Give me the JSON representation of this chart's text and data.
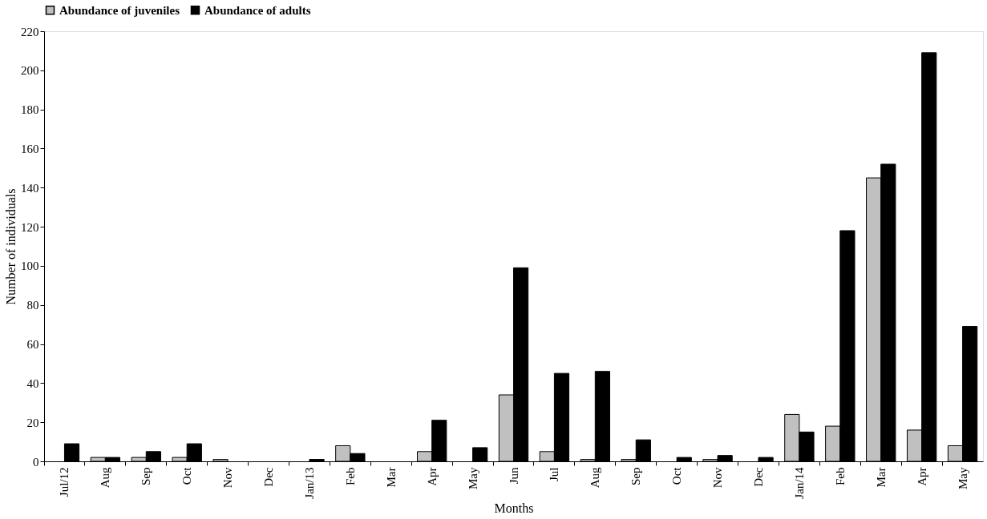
{
  "chart_data": {
    "type": "bar",
    "xlabel": "Months",
    "ylabel": "Number of individuals",
    "categories": [
      "Jul/12",
      "Aug",
      "Sep",
      "Oct",
      "Nov",
      "Dec",
      "Jan/13",
      "Feb",
      "Mar",
      "Apr",
      "May",
      "Jun",
      "Jul",
      "Aug",
      "Sep",
      "Oct",
      "Nov",
      "Dec",
      "Jan/14",
      "Feb",
      "Mar",
      "Apr",
      "May"
    ],
    "series": [
      {
        "name": "Abundance of juveniles",
        "color": "#c0c0c0",
        "values": [
          0,
          2,
          2,
          2,
          1,
          0,
          0,
          8,
          0,
          5,
          0,
          34,
          5,
          1,
          1,
          0,
          1,
          0,
          24,
          18,
          145,
          16,
          8
        ]
      },
      {
        "name": "Abundance of adults",
        "color": "#000000",
        "values": [
          9,
          2,
          5,
          9,
          0,
          0,
          1,
          4,
          0,
          21,
          7,
          99,
          45,
          46,
          11,
          2,
          3,
          2,
          15,
          118,
          152,
          209,
          69
        ]
      }
    ],
    "ylim": [
      0,
      220
    ],
    "yticks": [
      0,
      20,
      40,
      60,
      80,
      100,
      120,
      140,
      160,
      180,
      200,
      220
    ],
    "grid": false,
    "legend": "top"
  }
}
